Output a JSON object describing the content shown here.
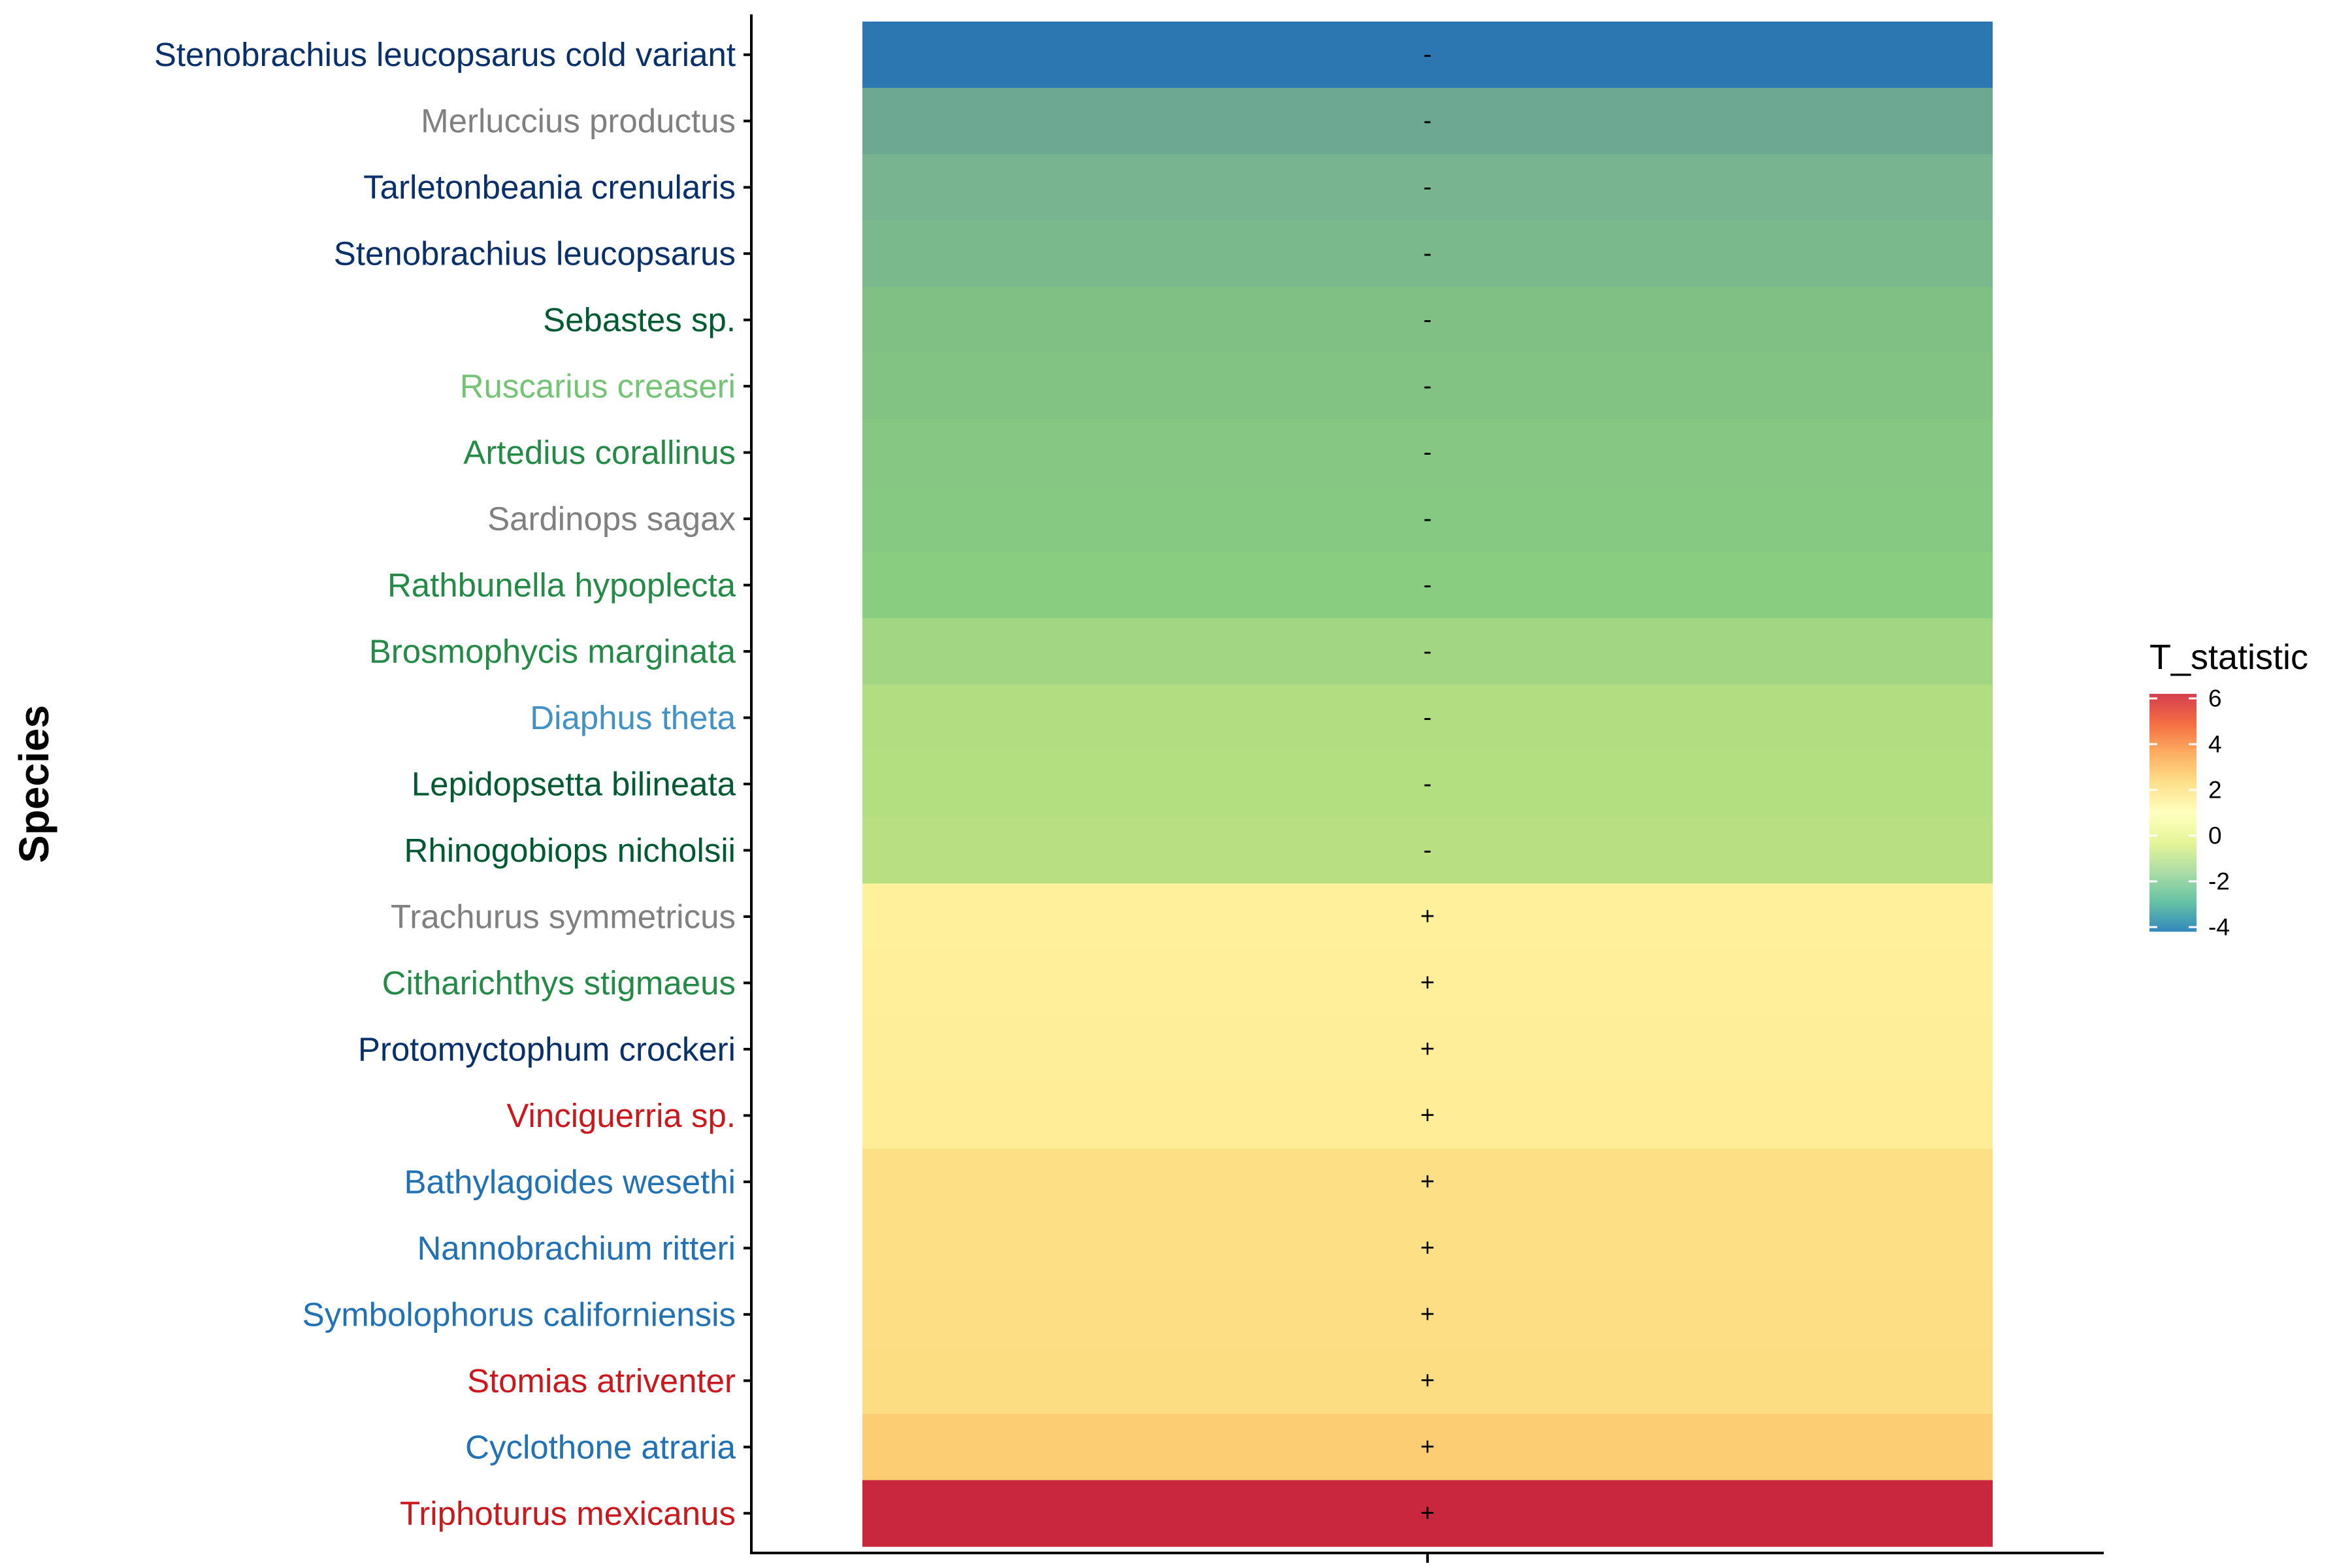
{
  "chart_data": {
    "type": "heatmap",
    "ylabel": "Species",
    "xlabel": "",
    "legend": {
      "title": "T_statistic",
      "placement": "right",
      "ticks": [
        6,
        4,
        2,
        0,
        -2,
        -4
      ],
      "range": [
        -4.2,
        6.2
      ],
      "colors": [
        "#d53e4f",
        "#f46d43",
        "#fdae61",
        "#fee08b",
        "#ffffbf",
        "#e6f598",
        "#abdda4",
        "#66c2a5",
        "#3288bd"
      ]
    },
    "rows": [
      {
        "species": "Stenobrachius leucopsarus cold variant",
        "sign": "-",
        "t": -4.1,
        "color": "#2c77b1",
        "label_color": "#08306b"
      },
      {
        "species": "Merluccius productus",
        "sign": "-",
        "t": -3.0,
        "color": "#6ca892",
        "label_color": "#808080"
      },
      {
        "species": "Tarletonbeania crenularis",
        "sign": "-",
        "t": -2.7,
        "color": "#77b48f",
        "label_color": "#08306b"
      },
      {
        "species": "Stenobrachius leucopsarus",
        "sign": "-",
        "t": -2.6,
        "color": "#79b98b",
        "label_color": "#08306b"
      },
      {
        "species": "Sebastes sp.",
        "sign": "-",
        "t": -2.4,
        "color": "#80c085",
        "label_color": "#005a32"
      },
      {
        "species": "Ruscarius creaseri",
        "sign": "-",
        "t": -2.35,
        "color": "#82c384",
        "label_color": "#74c476"
      },
      {
        "species": "Artedius corallinus",
        "sign": "-",
        "t": -2.3,
        "color": "#85c783",
        "label_color": "#238b45"
      },
      {
        "species": "Sardinops sagax",
        "sign": "-",
        "t": -2.25,
        "color": "#86c982",
        "label_color": "#808080"
      },
      {
        "species": "Rathbunella hypoplecta",
        "sign": "-",
        "t": -2.2,
        "color": "#88cd80",
        "label_color": "#238b45"
      },
      {
        "species": "Brosmophycis marginata",
        "sign": "-",
        "t": -1.6,
        "color": "#a3d683",
        "label_color": "#238b45"
      },
      {
        "species": "Diaphus theta",
        "sign": "-",
        "t": -1.2,
        "color": "#b2de81",
        "label_color": "#4292c6"
      },
      {
        "species": "Lepidopsetta bilineata",
        "sign": "-",
        "t": -1.15,
        "color": "#b4df81",
        "label_color": "#005a32"
      },
      {
        "species": "Rhinogobiops nicholsii",
        "sign": "-",
        "t": -1.1,
        "color": "#b8e082",
        "label_color": "#005a32"
      },
      {
        "species": "Trachurus symmetricus",
        "sign": "+",
        "t": 1.1,
        "color": "#fff09c",
        "label_color": "#808080"
      },
      {
        "species": "Citharichthys stigmaeus",
        "sign": "+",
        "t": 1.15,
        "color": "#ffef9a",
        "label_color": "#238b45"
      },
      {
        "species": "Protomyctophum crockeri",
        "sign": "+",
        "t": 1.2,
        "color": "#ffee99",
        "label_color": "#08306b"
      },
      {
        "species": "Vinciguerria sp.",
        "sign": "+",
        "t": 1.25,
        "color": "#ffed97",
        "label_color": "#cb181d"
      },
      {
        "species": "Bathylagoides wesethi",
        "sign": "+",
        "t": 1.9,
        "color": "#fde086",
        "label_color": "#2171b5"
      },
      {
        "species": "Nannobrachium ritteri",
        "sign": "+",
        "t": 1.95,
        "color": "#fddf85",
        "label_color": "#2171b5"
      },
      {
        "species": "Symbolophorus californiensis",
        "sign": "+",
        "t": 2.0,
        "color": "#fdde84",
        "label_color": "#2171b5"
      },
      {
        "species": "Stomias atriventer",
        "sign": "+",
        "t": 2.05,
        "color": "#fddd82",
        "label_color": "#cb181d"
      },
      {
        "species": "Cyclothone atraria",
        "sign": "+",
        "t": 2.5,
        "color": "#fdcd73",
        "label_color": "#2171b5"
      },
      {
        "species": "Triphoturus mexicanus",
        "sign": "+",
        "t": 6.0,
        "color": "#c8273d",
        "label_color": "#cb181d"
      }
    ]
  }
}
